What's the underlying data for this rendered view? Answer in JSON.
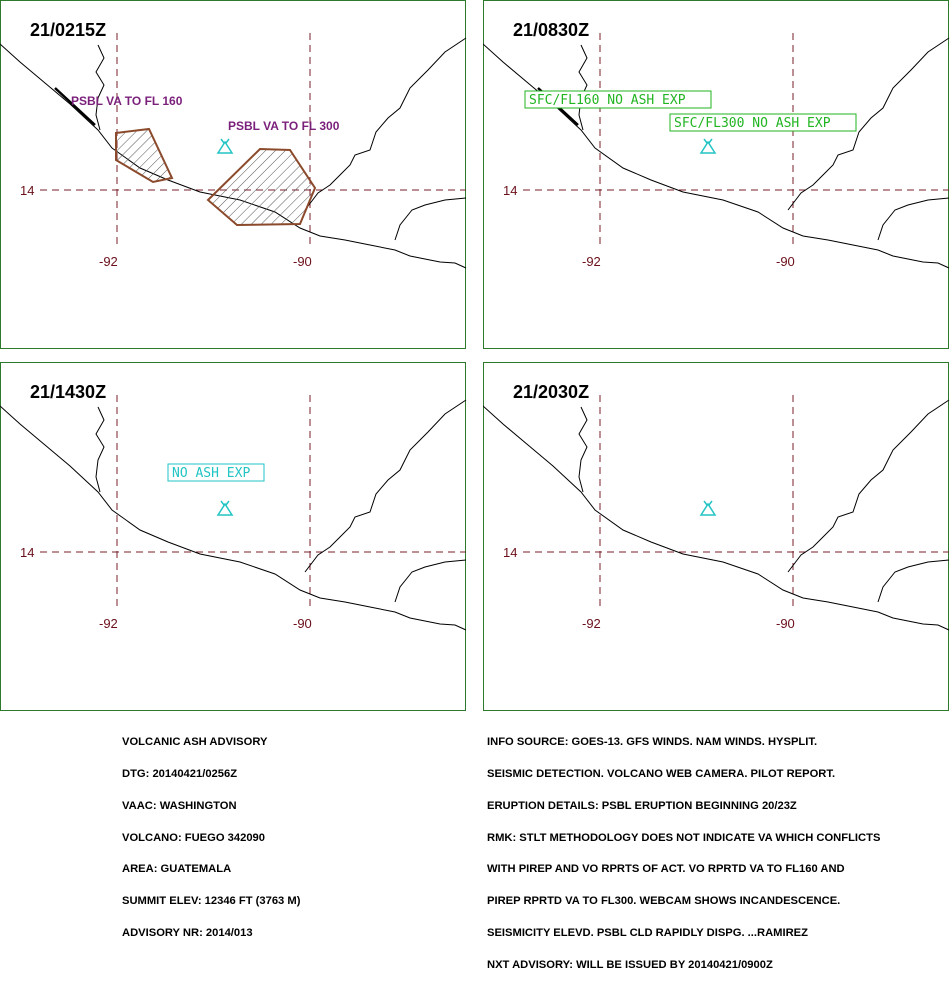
{
  "colors": {
    "border": "#2d7a2d",
    "grid": "#7a1f2a",
    "coast": "#000000",
    "polygon": "#8b4a2b",
    "purple": "#7a1f7a",
    "green": "#22b522",
    "cyan": "#22c4c4"
  },
  "axis": {
    "lat": "14",
    "lon_left": "-92",
    "lon_right": "-90"
  },
  "icons": {
    "volcano": "volcano-icon"
  },
  "panels": [
    {
      "title": "21/0215Z",
      "labels": [
        {
          "text": "PSBL VA TO FL 160",
          "style": "purple"
        },
        {
          "text": "PSBL VA TO FL 300",
          "style": "purple"
        }
      ],
      "polygons": 2
    },
    {
      "title": "21/0830Z",
      "labels": [
        {
          "text": "SFC/FL160 NO ASH EXP",
          "style": "green-box"
        },
        {
          "text": "SFC/FL300 NO ASH EXP",
          "style": "green-box"
        }
      ]
    },
    {
      "title": "21/1430Z",
      "labels": [
        {
          "text": "NO ASH EXP",
          "style": "cyan-box"
        }
      ]
    },
    {
      "title": "21/2030Z",
      "labels": []
    }
  ],
  "footer_left": [
    "VOLCANIC ASH ADVISORY",
    "DTG: 20140421/0256Z",
    "VAAC: WASHINGTON",
    "VOLCANO: FUEGO 342090",
    "AREA: GUATEMALA",
    "SUMMIT ELEV: 12346 FT (3763 M)",
    "ADVISORY NR: 2014/013"
  ],
  "footer_right": [
    "INFO SOURCE: GOES-13. GFS WINDS. NAM WINDS. HYSPLIT.",
    "SEISMIC DETECTION. VOLCANO WEB CAMERA. PILOT REPORT.",
    "ERUPTION DETAILS: PSBL ERUPTION BEGINNING 20/23Z",
    "RMK: STLT METHODOLOGY DOES NOT INDICATE VA WHICH CONFLICTS",
    "WITH PIREP AND VO RPRTS OF ACT. VO RPRTD VA TO FL160 AND",
    "PIREP RPRTD VA TO FL300. WEBCAM SHOWS INCANDESCENCE.",
    "SEISMICITY ELEVD. PSBL CLD RAPIDLY DISPG. ...RAMIREZ",
    "NXT ADVISORY: WILL BE ISSUED BY 20140421/0900Z"
  ]
}
